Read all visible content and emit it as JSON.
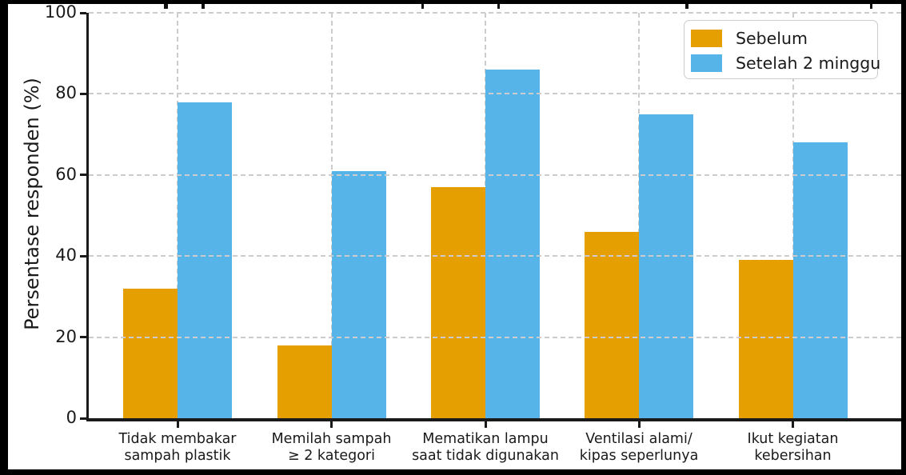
{
  "figure": {
    "ylabel": "Persentase responden (%)",
    "legend": {
      "items": [
        {
          "label": "Sebelum",
          "color": "#E69F00"
        },
        {
          "label": "Setelah 2 minggu",
          "color": "#56B4E9"
        }
      ]
    }
  },
  "chart_data": {
    "type": "bar",
    "categories": [
      "Tidak membakar\nsampah plastik",
      "Memilah sampah\n≥ 2 kategori",
      "Mematikan lampu\nsaat tidak digunakan",
      "Ventilasi alami/\nkipas seperlunya",
      "Ikut kegiatan\nkebersihan"
    ],
    "series": [
      {
        "name": "Sebelum",
        "color": "#E69F00",
        "values": [
          32,
          18,
          57,
          46,
          39
        ]
      },
      {
        "name": "Setelah 2 minggu",
        "color": "#56B4E9",
        "values": [
          78,
          61,
          86,
          75,
          68
        ]
      }
    ],
    "title": "",
    "xlabel": "",
    "ylabel": "Persentase responden (%)",
    "ylim": [
      0,
      100
    ],
    "yticks": [
      0,
      20,
      40,
      60,
      80,
      100
    ],
    "grid": true,
    "grid_style": "dashed",
    "gridlines_over_bars": true,
    "legend_position": "upper right",
    "colors": {
      "before": "#E69F00",
      "after": "#56B4E9",
      "grid": "#cccccc",
      "axis": "#1a1a1a"
    }
  }
}
